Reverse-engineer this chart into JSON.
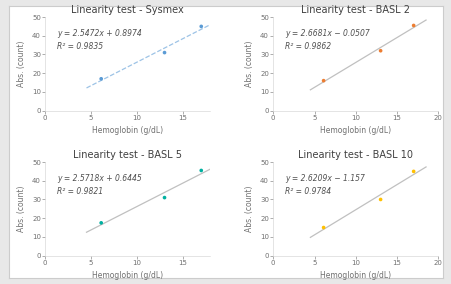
{
  "subplots": [
    {
      "title": "Linearity test - Sysmex",
      "x": [
        6.1,
        13.0,
        17.0
      ],
      "y": [
        17.0,
        31.0,
        45.0
      ],
      "color": "#5B9BD5",
      "line_color": "#9DC3E6",
      "linestyle": "--",
      "eq": "y = 2.5472x + 0.8974",
      "r2": "R² = 0.9835",
      "xlim": [
        0,
        18
      ],
      "ylim": [
        0,
        50
      ],
      "xticks": [
        0,
        5,
        10,
        15
      ],
      "yticks": [
        0,
        10,
        20,
        30,
        40,
        50
      ]
    },
    {
      "title": "Linearity test - BASL 2",
      "x": [
        6.1,
        13.0,
        17.0
      ],
      "y": [
        16.0,
        32.0,
        45.5
      ],
      "color": "#ED7D31",
      "line_color": "#C0C0C0",
      "linestyle": "-",
      "eq": "y = 2.6681x − 0.0507",
      "r2": "R² = 0.9862",
      "xlim": [
        0,
        20
      ],
      "ylim": [
        0,
        50
      ],
      "xticks": [
        0,
        5,
        10,
        15,
        20
      ],
      "yticks": [
        0,
        10,
        20,
        30,
        40,
        50
      ]
    },
    {
      "title": "Linearity test - BASL 5",
      "x": [
        6.1,
        13.0,
        17.0
      ],
      "y": [
        17.5,
        31.0,
        45.5
      ],
      "color": "#00B0A0",
      "line_color": "#C0C0C0",
      "linestyle": "-",
      "eq": "y = 2.5718x + 0.6445",
      "r2": "R² = 0.9821",
      "xlim": [
        0,
        18
      ],
      "ylim": [
        0,
        50
      ],
      "xticks": [
        0,
        5,
        10,
        15
      ],
      "yticks": [
        0,
        10,
        20,
        30,
        40,
        50
      ]
    },
    {
      "title": "Linearity test - BASL 10",
      "x": [
        6.1,
        13.0,
        17.0
      ],
      "y": [
        15.0,
        30.0,
        45.0
      ],
      "color": "#FFC000",
      "line_color": "#C0C0C0",
      "linestyle": "-",
      "eq": "y = 2.6209x − 1.157",
      "r2": "R² = 0.9784",
      "xlim": [
        0,
        20
      ],
      "ylim": [
        0,
        50
      ],
      "xticks": [
        0,
        5,
        10,
        15,
        20
      ],
      "yticks": [
        0,
        10,
        20,
        30,
        40,
        50
      ]
    }
  ],
  "xlabel": "Hemoglobin (g/dL)",
  "ylabel": "Abs. (count)",
  "bg_color": "#E8E8E8",
  "plot_bg": "#FFFFFF",
  "outer_bg": "#FFFFFF",
  "annotation_fontsize": 5.5,
  "title_fontsize": 7,
  "tick_fontsize": 5,
  "label_fontsize": 5.5,
  "line_x_start": 4.5,
  "line_x_end": 18.5
}
